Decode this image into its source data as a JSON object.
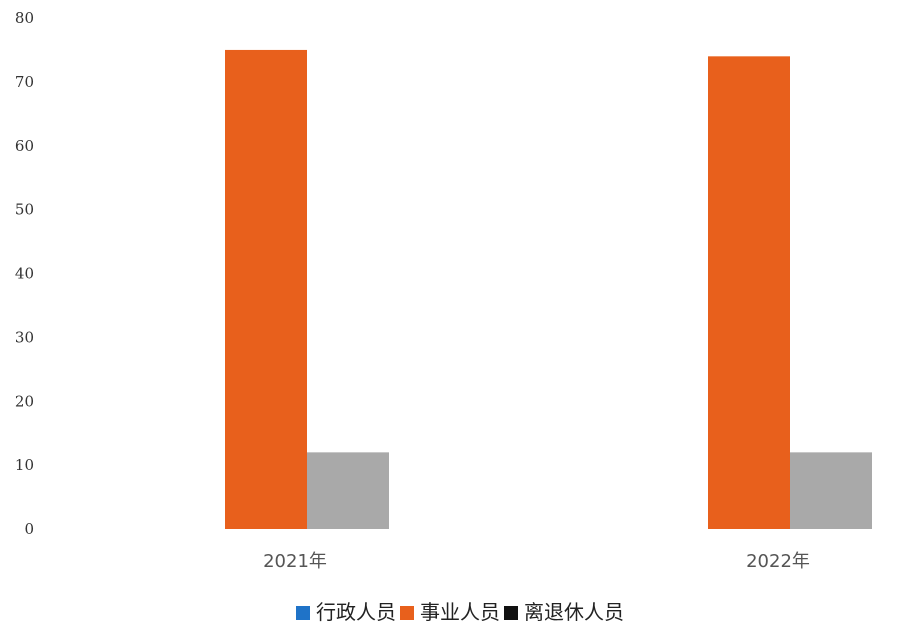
{
  "chart_data": {
    "type": "bar",
    "categories": [
      "2021年",
      "2022年"
    ],
    "series": [
      {
        "name": "行政人员",
        "color": "#1f73c8",
        "values": [
          0,
          0
        ]
      },
      {
        "name": "事业人员",
        "color": "#e8601c",
        "values": [
          75,
          74
        ]
      },
      {
        "name": "离退休人员",
        "color": "#a9a9a9",
        "values": [
          12,
          12
        ]
      }
    ],
    "ylim": [
      0,
      80
    ],
    "yticks": [
      0,
      10,
      20,
      30,
      40,
      50,
      60,
      70,
      80
    ],
    "legend_position": "bottom",
    "grid": false
  }
}
